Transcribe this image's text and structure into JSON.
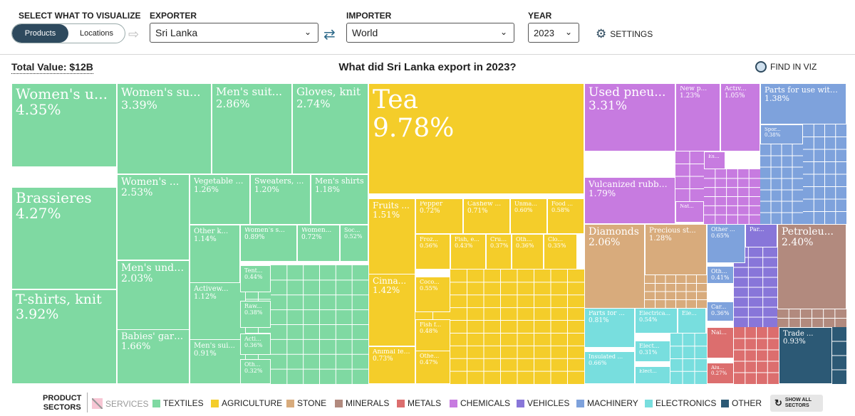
{
  "controls": {
    "select_label": "SELECT WHAT TO VISUALIZE",
    "exporter_label": "EXPORTER",
    "importer_label": "IMPORTER",
    "year_label": "YEAR",
    "toggle_products": "Products",
    "toggle_locations": "Locations",
    "exporter_value": "Sri Lanka",
    "importer_value": "World",
    "year_value": "2023",
    "settings_label": "SETTINGS"
  },
  "header": {
    "total_value": "Total Value: $12B",
    "title": "What did Sri Lanka export in 2023?",
    "find_label": "FIND IN VIZ"
  },
  "colors": {
    "textiles": "#7fd9a2",
    "agriculture": "#f4cd2a",
    "stone": "#d8ab7c",
    "minerals": "#b28a7e",
    "metals": "#dc6e6e",
    "chemicals": "#c77be0",
    "vehicles": "#8876d9",
    "machinery": "#7ea2dc",
    "electronics": "#78dede",
    "other": "#2c5975",
    "services": "#f0a0b8"
  },
  "treemap": [
    {
      "name": "Women's u...",
      "value": "4.35%",
      "sector": "textiles"
    },
    {
      "name": "Brassieres",
      "value": "4.27%",
      "sector": "textiles"
    },
    {
      "name": "T-shirts, knit",
      "value": "3.92%",
      "sector": "textiles"
    },
    {
      "name": "Women's su...",
      "value": "3.39%",
      "sector": "textiles"
    },
    {
      "name": "Men's suit...",
      "value": "2.86%",
      "sector": "textiles"
    },
    {
      "name": "Gloves, knit",
      "value": "2.74%",
      "sector": "textiles"
    },
    {
      "name": "Women's ...",
      "value": "2.53%",
      "sector": "textiles"
    },
    {
      "name": "Vegetable t...",
      "value": "1.26%",
      "sector": "textiles"
    },
    {
      "name": "Sweaters, ...",
      "value": "1.20%",
      "sector": "textiles"
    },
    {
      "name": "Men's shirts",
      "value": "1.18%",
      "sector": "textiles"
    },
    {
      "name": "Other k...",
      "value": "1.14%",
      "sector": "textiles"
    },
    {
      "name": "Women's s...",
      "value": "0.89%",
      "sector": "textiles"
    },
    {
      "name": "Women...",
      "value": "0.72%",
      "sector": "textiles"
    },
    {
      "name": "Soc...",
      "value": "0.52%",
      "sector": "textiles"
    },
    {
      "name": "Men's unde...",
      "value": "2.03%",
      "sector": "textiles"
    },
    {
      "name": "Activew...",
      "value": "1.12%",
      "sector": "textiles"
    },
    {
      "name": "Tent...",
      "value": "0.44%",
      "sector": "textiles"
    },
    {
      "name": "Raw...",
      "value": "0.38%",
      "sector": "textiles"
    },
    {
      "name": "Babies' garm...",
      "value": "1.66%",
      "sector": "textiles"
    },
    {
      "name": "Men's sui...",
      "value": "0.91%",
      "sector": "textiles"
    },
    {
      "name": "Acti...",
      "value": "0.36%",
      "sector": "textiles"
    },
    {
      "name": "Oth...",
      "value": "0.32%",
      "sector": "textiles"
    },
    {
      "name": "Tea",
      "value": "9.78%",
      "sector": "agriculture"
    },
    {
      "name": "Fruits ...",
      "value": "1.51%",
      "sector": "agriculture"
    },
    {
      "name": "Pepper",
      "value": "0.72%",
      "sector": "agriculture"
    },
    {
      "name": "Cashew ...",
      "value": "0.71%",
      "sector": "agriculture"
    },
    {
      "name": "Unma...",
      "value": "0.60%",
      "sector": "agriculture"
    },
    {
      "name": "Food ...",
      "value": "0.58%",
      "sector": "agriculture"
    },
    {
      "name": "Froz...",
      "value": "0.56%",
      "sector": "agriculture"
    },
    {
      "name": "Fish, e...",
      "value": "0.43%",
      "sector": "agriculture"
    },
    {
      "name": "Crus...",
      "value": "0.37%",
      "sector": "agriculture"
    },
    {
      "name": "Oth...",
      "value": "0.36%",
      "sector": "agriculture"
    },
    {
      "name": "Clo...",
      "value": "0.35%",
      "sector": "agriculture"
    },
    {
      "name": "Cinna...",
      "value": "1.42%",
      "sector": "agriculture"
    },
    {
      "name": "Coco...",
      "value": "0.55%",
      "sector": "agriculture"
    },
    {
      "name": "Fish f...",
      "value": "0.48%",
      "sector": "agriculture"
    },
    {
      "name": "Animal feed",
      "value": "0.73%",
      "sector": "agriculture"
    },
    {
      "name": "Othe...",
      "value": "0.47%",
      "sector": "agriculture"
    },
    {
      "name": "Used pneu...",
      "value": "3.31%",
      "sector": "chemicals"
    },
    {
      "name": "New p...",
      "value": "1.23%",
      "sector": "chemicals"
    },
    {
      "name": "Activ...",
      "value": "1.05%",
      "sector": "chemicals"
    },
    {
      "name": "Ess...",
      "value": "",
      "sector": "chemicals"
    },
    {
      "name": "Vulcanized rubbe...",
      "value": "1.79%",
      "sector": "chemicals"
    },
    {
      "name": "Nat...",
      "value": "",
      "sector": "chemicals"
    },
    {
      "name": "Parts for use with ...",
      "value": "1.38%",
      "sector": "machinery"
    },
    {
      "name": "Spor...",
      "value": "0.38%",
      "sector": "machinery"
    },
    {
      "name": "Diamonds",
      "value": "2.06%",
      "sector": "stone"
    },
    {
      "name": "Precious st...",
      "value": "1.28%",
      "sector": "stone"
    },
    {
      "name": "Other ...",
      "value": "0.65%",
      "sector": "machinery"
    },
    {
      "name": "Par...",
      "value": "",
      "sector": "vehicles"
    },
    {
      "name": "Oth...",
      "value": "0.41%",
      "sector": "machinery"
    },
    {
      "name": "Car...",
      "value": "0.36%",
      "sector": "machinery"
    },
    {
      "name": "Petroleu...",
      "value": "2.40%",
      "sector": "minerals"
    },
    {
      "name": "Parts for ...",
      "value": "0.81%",
      "sector": "electronics"
    },
    {
      "name": "Electrica...",
      "value": "0.54%",
      "sector": "electronics"
    },
    {
      "name": "Ele...",
      "value": "",
      "sector": "electronics"
    },
    {
      "name": "Elect...",
      "value": "0.31%",
      "sector": "electronics"
    },
    {
      "name": "Insulated ...",
      "value": "0.66%",
      "sector": "electronics"
    },
    {
      "name": "Elect...",
      "value": "",
      "sector": "electronics"
    },
    {
      "name": "Nai...",
      "value": "",
      "sector": "metals"
    },
    {
      "name": "Alu...",
      "value": "0.27%",
      "sector": "metals"
    },
    {
      "name": "Trade ...",
      "value": "0.93%",
      "sector": "other"
    }
  ],
  "legend": {
    "title": "PRODUCT SECTORS",
    "items": [
      "SERVICES",
      "TEXTILES",
      "AGRICULTURE",
      "STONE",
      "MINERALS",
      "METALS",
      "CHEMICALS",
      "VEHICLES",
      "MACHINERY",
      "ELECTRONICS",
      "OTHER"
    ],
    "show_all": "SHOW ALL SECTORS"
  }
}
